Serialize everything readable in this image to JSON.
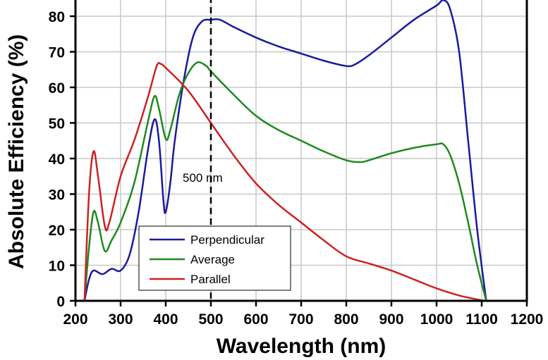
{
  "chart_data": {
    "type": "line",
    "xlabel": "Wavelength (nm)",
    "ylabel": "Absolute Efficiency (%)",
    "xlim": [
      200,
      1200
    ],
    "ylim": [
      0,
      85
    ],
    "xticks": [
      200,
      300,
      400,
      500,
      600,
      700,
      800,
      900,
      1000,
      1100,
      1200
    ],
    "yticks": [
      0,
      10,
      20,
      30,
      40,
      50,
      60,
      70,
      80
    ],
    "grid": true,
    "legend_position": "lower-left",
    "annotation": {
      "x": 500,
      "label": "500 nm",
      "style": "dashed vertical line"
    },
    "series": [
      {
        "name": "Perpendicular",
        "color": "#1a1a9e",
        "x": [
          220,
          230,
          240,
          260,
          280,
          300,
          320,
          340,
          360,
          375,
          385,
          395,
          400,
          410,
          420,
          440,
          460,
          480,
          500,
          520,
          550,
          600,
          650,
          700,
          750,
          800,
          820,
          850,
          900,
          950,
          1000,
          1015,
          1030,
          1050,
          1070,
          1090,
          1110
        ],
        "y": [
          0,
          6,
          8.5,
          7.5,
          9,
          8.5,
          13,
          25,
          42,
          51,
          45,
          28,
          25,
          33,
          45,
          62,
          74,
          78.5,
          79,
          79,
          77,
          74,
          71.5,
          69.5,
          67.5,
          66,
          66.5,
          69,
          74,
          79,
          83,
          84.5,
          82,
          70,
          45,
          20,
          0
        ]
      },
      {
        "name": "Average",
        "color": "#1e8a1e",
        "x": [
          220,
          230,
          240,
          250,
          265,
          280,
          300,
          330,
          360,
          375,
          385,
          400,
          410,
          430,
          450,
          470,
          490,
          500,
          550,
          600,
          650,
          700,
          750,
          800,
          830,
          850,
          900,
          950,
          1000,
          1015,
          1030,
          1050,
          1070,
          1090,
          1110
        ],
        "y": [
          0,
          15,
          25,
          22,
          14,
          17,
          22,
          33,
          50,
          57.5,
          54,
          45.5,
          48,
          58,
          64,
          67,
          66,
          64.5,
          58,
          52,
          48,
          45,
          42,
          39.5,
          39,
          39.5,
          41.5,
          43,
          44,
          44,
          41,
          33,
          22,
          10,
          0
        ]
      },
      {
        "name": "Parallel",
        "color": "#cc2222",
        "x": [
          220,
          230,
          240,
          250,
          265,
          275,
          300,
          330,
          360,
          380,
          390,
          400,
          450,
          500,
          550,
          600,
          650,
          700,
          750,
          800,
          850,
          900,
          950,
          1000,
          1050,
          1105
        ],
        "y": [
          0,
          30,
          42,
          35,
          21,
          22,
          35,
          45,
          57,
          66,
          66.5,
          65.5,
          59,
          50,
          41,
          33,
          27,
          22,
          17,
          12.5,
          10.5,
          8.5,
          6,
          3.5,
          1.5,
          0
        ]
      }
    ]
  }
}
